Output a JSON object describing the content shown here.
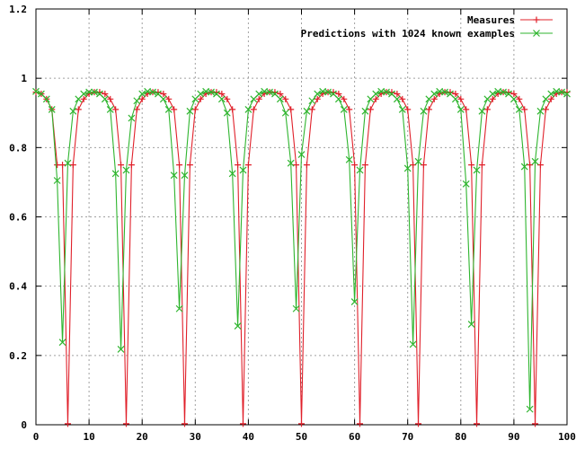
{
  "chart_data": {
    "type": "line",
    "xlim": [
      0,
      100
    ],
    "ylim": [
      0,
      1.2
    ],
    "xticks": [
      0,
      10,
      20,
      30,
      40,
      50,
      60,
      70,
      80,
      90,
      100
    ],
    "xtick_labels": [
      "0",
      "10",
      "20",
      "30",
      "40",
      "50",
      "60",
      "70",
      "80",
      "90",
      "100"
    ],
    "yticks": [
      0,
      0.2,
      0.4,
      0.6,
      0.8,
      1,
      1.2
    ],
    "ytick_labels": [
      "0",
      "0.2",
      "0.4",
      "0.6",
      "0.8",
      "1",
      "1.2"
    ],
    "grid": true,
    "legend_position": "top-right",
    "series": [
      {
        "name": "Measures",
        "color": "#e0202a",
        "marker": "plus",
        "x": [
          0,
          1,
          2,
          3,
          4,
          5,
          6,
          7,
          8,
          9,
          10,
          11,
          12,
          13,
          14,
          15,
          16,
          17,
          18,
          19,
          20,
          21,
          22,
          23,
          24,
          25,
          26,
          27,
          28,
          29,
          30,
          31,
          32,
          33,
          34,
          35,
          36,
          37,
          38,
          39,
          40,
          41,
          42,
          43,
          44,
          45,
          46,
          47,
          48,
          49,
          50,
          51,
          52,
          53,
          54,
          55,
          56,
          57,
          58,
          59,
          60,
          61,
          62,
          63,
          64,
          65,
          66,
          67,
          68,
          69,
          70,
          71,
          72,
          73,
          74,
          75,
          76,
          77,
          78,
          79,
          80,
          81,
          82,
          83,
          84,
          85,
          86,
          87,
          88,
          89,
          90,
          91,
          92,
          93,
          94,
          95,
          96,
          97,
          98,
          99,
          100
        ],
        "y": [
          0.96,
          0.955,
          0.94,
          0.91,
          0.75,
          0.75,
          0.003,
          0.75,
          0.91,
          0.94,
          0.955,
          0.96,
          0.96,
          0.955,
          0.94,
          0.91,
          0.75,
          0.003,
          0.75,
          0.91,
          0.94,
          0.955,
          0.96,
          0.96,
          0.955,
          0.94,
          0.91,
          0.75,
          0.003,
          0.75,
          0.91,
          0.94,
          0.955,
          0.96,
          0.96,
          0.955,
          0.94,
          0.91,
          0.75,
          0.003,
          0.75,
          0.91,
          0.94,
          0.955,
          0.96,
          0.96,
          0.955,
          0.94,
          0.91,
          0.75,
          0.003,
          0.75,
          0.91,
          0.94,
          0.955,
          0.96,
          0.96,
          0.955,
          0.94,
          0.91,
          0.75,
          0.003,
          0.75,
          0.91,
          0.94,
          0.955,
          0.96,
          0.96,
          0.955,
          0.94,
          0.91,
          0.75,
          0.003,
          0.75,
          0.91,
          0.94,
          0.955,
          0.96,
          0.96,
          0.955,
          0.94,
          0.91,
          0.75,
          0.003,
          0.75,
          0.91,
          0.94,
          0.955,
          0.96,
          0.96,
          0.955,
          0.94,
          0.91,
          0.75,
          0.003,
          0.75,
          0.91,
          0.94,
          0.955,
          0.96,
          0.96
        ]
      },
      {
        "name": "Predictions with 1024 known examples",
        "color": "#2fb52f",
        "marker": "cross",
        "x": [
          0,
          1,
          2,
          3,
          4,
          5,
          6,
          7,
          8,
          9,
          10,
          11,
          12,
          13,
          14,
          15,
          16,
          17,
          18,
          19,
          20,
          21,
          22,
          23,
          24,
          25,
          26,
          27,
          28,
          29,
          30,
          31,
          32,
          33,
          34,
          35,
          36,
          37,
          38,
          39,
          40,
          41,
          42,
          43,
          44,
          45,
          46,
          47,
          48,
          49,
          50,
          51,
          52,
          53,
          54,
          55,
          56,
          57,
          58,
          59,
          60,
          61,
          62,
          63,
          64,
          65,
          66,
          67,
          68,
          69,
          70,
          71,
          72,
          73,
          74,
          75,
          76,
          77,
          78,
          79,
          80,
          81,
          82,
          83,
          84,
          85,
          86,
          87,
          88,
          89,
          90,
          91,
          92,
          93,
          94,
          95,
          96,
          97,
          98,
          99,
          100
        ],
        "y": [
          0.962,
          0.955,
          0.94,
          0.91,
          0.705,
          0.238,
          0.755,
          0.905,
          0.94,
          0.955,
          0.96,
          0.96,
          0.955,
          0.94,
          0.91,
          0.725,
          0.218,
          0.735,
          0.885,
          0.935,
          0.955,
          0.962,
          0.96,
          0.955,
          0.94,
          0.91,
          0.72,
          0.335,
          0.72,
          0.905,
          0.94,
          0.955,
          0.962,
          0.96,
          0.955,
          0.94,
          0.9,
          0.725,
          0.285,
          0.735,
          0.91,
          0.94,
          0.955,
          0.962,
          0.96,
          0.955,
          0.94,
          0.9,
          0.755,
          0.335,
          0.78,
          0.905,
          0.935,
          0.955,
          0.962,
          0.96,
          0.955,
          0.94,
          0.91,
          0.765,
          0.355,
          0.735,
          0.905,
          0.94,
          0.955,
          0.962,
          0.96,
          0.955,
          0.94,
          0.91,
          0.74,
          0.232,
          0.76,
          0.905,
          0.94,
          0.955,
          0.962,
          0.96,
          0.955,
          0.94,
          0.91,
          0.695,
          0.29,
          0.735,
          0.905,
          0.94,
          0.955,
          0.962,
          0.96,
          0.955,
          0.94,
          0.91,
          0.745,
          0.045,
          0.76,
          0.905,
          0.94,
          0.955,
          0.962,
          0.96,
          0.955
        ]
      }
    ]
  }
}
